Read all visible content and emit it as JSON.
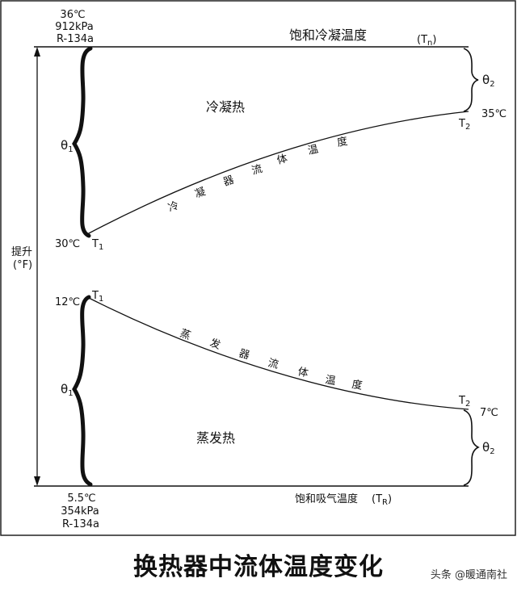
{
  "condenser": {
    "top_temp": "36℃",
    "top_pressure": "912kPa",
    "top_refrigerant": "R-134a",
    "saturation_label": "饱和冷凝温度",
    "saturation_symbol": "(T",
    "saturation_symbol_sub": "n",
    "saturation_symbol_close": ")",
    "theta_left": "θ",
    "theta_left_sub": "1",
    "theta_right": "θ",
    "theta_right_sub": "2",
    "heat_label": "冷凝热",
    "fluid_curve_label": [
      "冷",
      "凝",
      "器",
      "流",
      "体",
      "温",
      "度"
    ],
    "t1_temp": "30℃",
    "t1_label": "T",
    "t1_sub": "1",
    "t2_temp": "35℃",
    "t2_label": "T",
    "t2_sub": "2"
  },
  "lift_axis": {
    "label": "提升",
    "unit": "(°F)"
  },
  "evaporator": {
    "t1_temp": "12℃",
    "t1_label": "T",
    "t1_sub": "1",
    "fluid_curve_label": [
      "蒸",
      "发",
      "器",
      "流",
      "体",
      "温",
      "度"
    ],
    "theta_left": "θ",
    "theta_left_sub": "1",
    "t2_label": "T",
    "t2_sub": "2",
    "t2_temp": "7℃",
    "theta_right": "θ",
    "theta_right_sub": "2",
    "heat_label": "蒸发热",
    "bottom_temp": "5.5℃",
    "bottom_pressure": "354kPa",
    "bottom_refrigerant": "R-134a",
    "saturation_label": "饱和吸气温度",
    "saturation_symbol": "(T",
    "saturation_symbol_sub": "R",
    "saturation_symbol_close": ")"
  },
  "caption": "换热器中流体温度变化",
  "watermark": "头条 @暖通南社"
}
